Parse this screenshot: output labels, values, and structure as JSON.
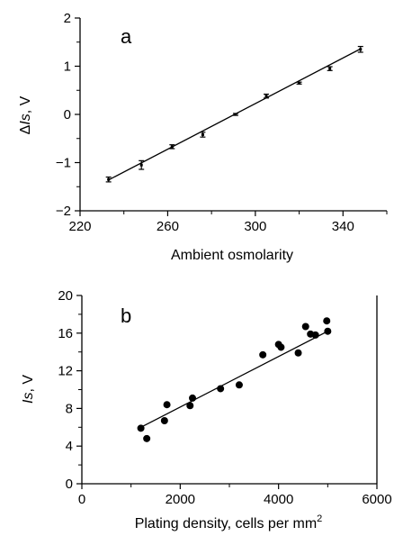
{
  "chart_data": [
    {
      "panel": "a",
      "type": "scatter",
      "xlabel": "Ambient osmolarity",
      "ylabel_prefix": "Δ",
      "ylabel_italic": "Is",
      "ylabel_suffix": ", V",
      "xlim": [
        220,
        360
      ],
      "ylim": [
        -2,
        2
      ],
      "x_ticks": [
        220,
        260,
        300,
        340
      ],
      "x_minor_ticks": [
        240,
        280,
        320,
        360
      ],
      "y_ticks": [
        -2,
        -1,
        0,
        1,
        2
      ],
      "y_minor_ticks": [
        -1.5,
        -0.5,
        0.5,
        1.5
      ],
      "grid": false,
      "error_bars": true,
      "points": [
        {
          "x": 233,
          "y": -1.35,
          "err": 0.05
        },
        {
          "x": 248,
          "y": -1.05,
          "err": 0.09
        },
        {
          "x": 262,
          "y": -0.67,
          "err": 0.04
        },
        {
          "x": 276,
          "y": -0.42,
          "err": 0.05
        },
        {
          "x": 291,
          "y": 0.0,
          "err": 0.02
        },
        {
          "x": 305,
          "y": 0.38,
          "err": 0.04
        },
        {
          "x": 320,
          "y": 0.65,
          "err": 0.02
        },
        {
          "x": 334,
          "y": 0.95,
          "err": 0.04
        },
        {
          "x": 348,
          "y": 1.35,
          "err": 0.06
        }
      ],
      "fit_line": {
        "x": [
          233,
          348
        ],
        "y": [
          -1.36,
          1.36
        ]
      }
    },
    {
      "panel": "b",
      "type": "scatter",
      "xlabel_main": "Plating density, cells per mm",
      "xlabel_sup": "2",
      "ylabel_italic": "Is",
      "ylabel_suffix": ", V",
      "xlim": [
        0,
        6000
      ],
      "ylim": [
        0,
        20
      ],
      "x_ticks": [
        0,
        2000,
        4000,
        6000
      ],
      "x_minor_ticks": [
        1000,
        3000,
        5000
      ],
      "y_ticks": [
        0,
        4,
        8,
        12,
        16,
        20
      ],
      "y_minor_ticks": [
        2,
        6,
        10,
        14,
        18
      ],
      "grid": false,
      "points": [
        {
          "x": 1200,
          "y": 5.9
        },
        {
          "x": 1320,
          "y": 4.8
        },
        {
          "x": 1680,
          "y": 6.7
        },
        {
          "x": 1730,
          "y": 8.4
        },
        {
          "x": 2200,
          "y": 8.3
        },
        {
          "x": 2250,
          "y": 9.1
        },
        {
          "x": 2820,
          "y": 10.1
        },
        {
          "x": 3200,
          "y": 10.5
        },
        {
          "x": 3680,
          "y": 13.7
        },
        {
          "x": 4000,
          "y": 14.8
        },
        {
          "x": 4050,
          "y": 14.5
        },
        {
          "x": 4400,
          "y": 13.9
        },
        {
          "x": 4550,
          "y": 16.7
        },
        {
          "x": 4650,
          "y": 15.9
        },
        {
          "x": 4750,
          "y": 15.8
        },
        {
          "x": 4980,
          "y": 17.3
        },
        {
          "x": 5000,
          "y": 16.2
        }
      ],
      "fit_line": {
        "x": [
          1200,
          5000
        ],
        "y": [
          6.0,
          16.2
        ]
      }
    }
  ]
}
